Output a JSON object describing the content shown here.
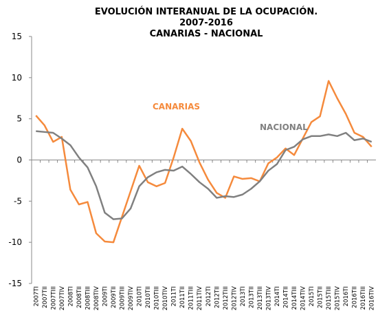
{
  "chart_data": {
    "type": "line",
    "title": [
      "EVOLUCIÓN INTERANUAL DE LA OCUPACIÓN.",
      "2007-2016",
      "CANARIAS - NACIONAL"
    ],
    "categories": [
      "2007TI",
      "2007TII",
      "2007TIII",
      "2007TIV",
      "2008TI",
      "2008TII",
      "2008TIII",
      "2008TIV",
      "2009TI",
      "2009TII",
      "2009TIII",
      "2009TIV",
      "2010TI",
      "2010TII",
      "2010TIII",
      "2010TIV",
      "2011TI",
      "2011TII",
      "2011TIII",
      "2011TIV",
      "2012TI",
      "2012TII",
      "2012TIII",
      "2012TIV",
      "2013TI",
      "2013TII",
      "2013TIII",
      "2013TIV",
      "2014TI",
      "2014TII",
      "2014TIII",
      "2014TIV",
      "2015TI",
      "2015TII",
      "2015TIII",
      "2015TIV",
      "2016TI",
      "2016TII",
      "2016TIII",
      "2016TIV"
    ],
    "series": [
      {
        "name": "CANARIAS",
        "color": "#f58a3c",
        "values": [
          5.4,
          4.2,
          2.2,
          2.8,
          -3.6,
          -5.4,
          -5.1,
          -8.9,
          -9.9,
          -10.0,
          -6.9,
          -3.8,
          -0.7,
          -2.7,
          -3.2,
          -2.8,
          0.3,
          3.8,
          2.3,
          -0.3,
          -2.4,
          -4.0,
          -4.6,
          -2.0,
          -2.3,
          -2.2,
          -2.6,
          -0.4,
          0.3,
          1.4,
          0.6,
          2.6,
          4.6,
          5.3,
          9.6,
          7.5,
          5.6,
          3.3,
          2.8,
          1.6
        ]
      },
      {
        "name": "NACIONAL",
        "color": "#808080",
        "values": [
          3.5,
          3.4,
          3.3,
          2.6,
          1.8,
          0.3,
          -0.9,
          -3.2,
          -6.4,
          -7.2,
          -7.1,
          -5.9,
          -3.2,
          -2.1,
          -1.5,
          -1.2,
          -1.3,
          -0.8,
          -1.7,
          -2.7,
          -3.5,
          -4.6,
          -4.4,
          -4.5,
          -4.2,
          -3.5,
          -2.6,
          -1.3,
          -0.5,
          1.2,
          1.6,
          2.5,
          2.9,
          2.9,
          3.1,
          2.9,
          3.3,
          2.4,
          2.6,
          2.2
        ]
      }
    ],
    "ylim": [
      -15,
      15
    ],
    "yticks": [
      -15,
      -10,
      -5,
      0,
      5,
      10,
      15
    ],
    "grid": false
  }
}
